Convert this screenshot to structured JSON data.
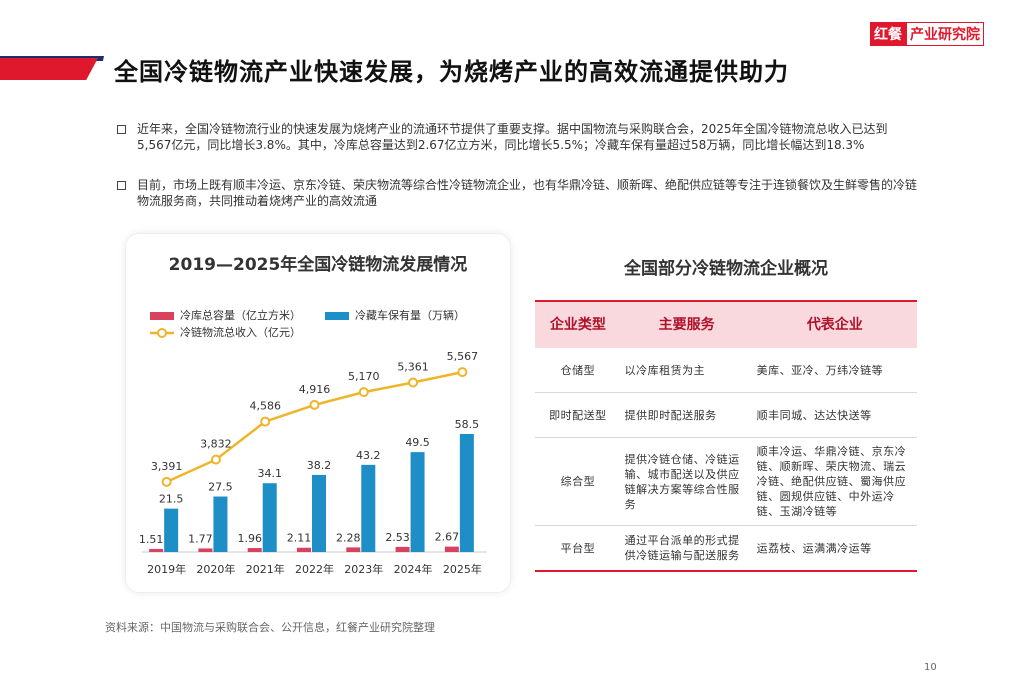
{
  "header": {
    "logo_brand": "红餐",
    "logo_text": "产业研究院",
    "title": "全国冷链物流产业快速发展，为烧烤产业的高效流通提供助力"
  },
  "bullets": [
    "近年来，全国冷链物流行业的快速发展为烧烤产业的流通环节提供了重要支撑。据中国物流与采购联合会，2025年全国冷链物流总收入已达到5,567亿元，同比增长3.8%。其中，冷库总容量达到2.67亿立方米，同比增长5.5%；冷藏车保有量超过58万辆，同比增长幅达到18.3%",
    "目前，市场上既有顺丰冷运、京东冷链、荣庆物流等综合性冷链物流企业，也有华鼎冷链、顺新晖、绝配供应链等专注于连锁餐饮及生鲜零售的冷链物流服务商，共同推动着烧烤产业的高效流通"
  ],
  "chart_data": {
    "type": "bar",
    "title": "2019—2025年全国冷链物流发展情况",
    "categories": [
      "2019年",
      "2020年",
      "2021年",
      "2022年",
      "2023年",
      "2024年",
      "2025年"
    ],
    "series": [
      {
        "name": "冷库总容量（亿立方米）",
        "type": "bar",
        "color": "#d9425f",
        "values": [
          1.51,
          1.77,
          1.96,
          2.11,
          2.28,
          2.53,
          2.67
        ]
      },
      {
        "name": "冷藏车保有量（万辆）",
        "type": "bar",
        "color": "#1e8ec6",
        "values": [
          21.5,
          27.5,
          34.1,
          38.2,
          43.2,
          49.5,
          58.5
        ]
      },
      {
        "name": "冷链物流总收入（亿元）",
        "type": "line",
        "axis": "y2",
        "color": "#f0b429",
        "values": [
          3391,
          3832,
          4586,
          4916,
          5170,
          5361,
          5567
        ],
        "value_labels": [
          "3,391",
          "3,832",
          "4,586",
          "4,916",
          "5,170",
          "5,361",
          "5,567"
        ]
      }
    ],
    "ylim": [
      0,
      115
    ],
    "y2lim": [
      2000,
      6600
    ],
    "legend": "top-left"
  },
  "table": {
    "title": "全国部分冷链物流企业概况",
    "columns": [
      "企业类型",
      "主要服务",
      "代表企业"
    ],
    "rows": [
      [
        "仓储型",
        "以冷库租赁为主",
        "美库、亚冷、万纬冷链等"
      ],
      [
        "即时配送型",
        "提供即时配送服务",
        "顺丰同城、达达快送等"
      ],
      [
        "综合型",
        "提供冷链仓储、冷链运输、城市配送以及供应链解决方案等综合性服务",
        "顺丰冷运、华鼎冷链、京东冷链、顺新晖、荣庆物流、瑞云冷链、绝配供应链、蜀海供应链、圆规供应链、中外运冷链、玉湖冷链等"
      ],
      [
        "平台型",
        "通过平台派单的形式提供冷链运输与配送服务",
        "运荔枝、运满满冷运等"
      ]
    ]
  },
  "source": "资料来源：中国物流与采购联合会、公开信息，红餐产业研究院整理",
  "page_number": "10"
}
